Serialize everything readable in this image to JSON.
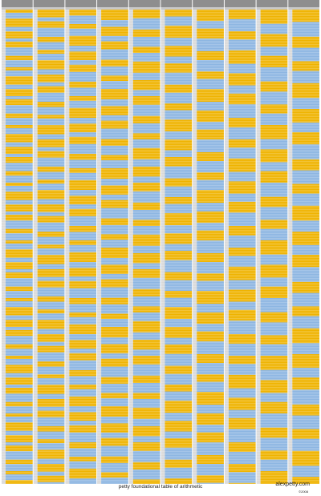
{
  "footer": {
    "title": "petty foundational table of arithmetic",
    "site": "alexpetty.com",
    "copyright": "©2008"
  }
}
